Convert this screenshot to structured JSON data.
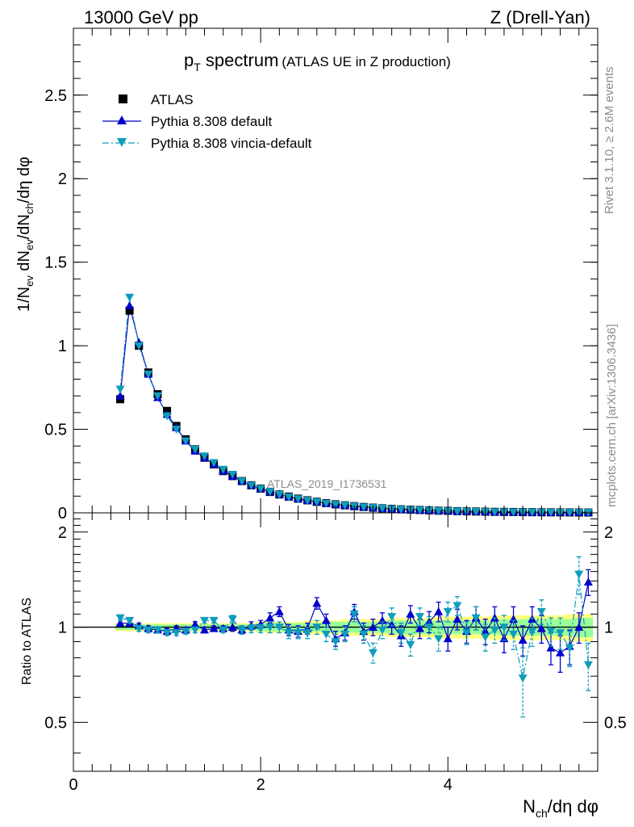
{
  "header": {
    "energy_label": "13000 GeV pp",
    "process_label": "Z (Drell-Yan)"
  },
  "title": {
    "main": "p",
    "main_sub": "T",
    "main_rest": " spectrum",
    "detail": "(ATLAS UE in Z production)"
  },
  "side_labels": {
    "rivet": "Rivet 3.1.10, ≥ 2.6M events",
    "mcplots": "mcplots.cern.ch [arXiv:1306.3436]"
  },
  "watermark": "ATLAS_2019_I1736531",
  "colors": {
    "atlas": "#000000",
    "default": "#0000cc",
    "vincia": "#0f9cbc",
    "band_inner": "#99ff99",
    "band_outer": "#ffff80"
  },
  "chart_data": [
    {
      "type": "scatter",
      "panel": "main",
      "ylabel": "1/N_ev dN_ev/dN_ch/dη dφ",
      "xlim": [
        0,
        5.6
      ],
      "ylim": [
        0,
        2.9
      ],
      "yticks": [
        "0",
        "0.5",
        "1",
        "1.5",
        "2",
        "2.5"
      ],
      "legend_position": "top-left",
      "x": [
        0.5,
        0.6,
        0.7,
        0.8,
        0.9,
        1.0,
        1.1,
        1.2,
        1.3,
        1.4,
        1.5,
        1.6,
        1.7,
        1.8,
        1.9,
        2.0,
        2.1,
        2.2,
        2.3,
        2.4,
        2.5,
        2.6,
        2.7,
        2.8,
        2.9,
        3.0,
        3.1,
        3.2,
        3.3,
        3.4,
        3.5,
        3.6,
        3.7,
        3.8,
        3.9,
        4.0,
        4.1,
        4.2,
        4.3,
        4.4,
        4.5,
        4.6,
        4.7,
        4.8,
        4.9,
        5.0,
        5.1,
        5.2,
        5.3,
        5.4,
        5.5
      ],
      "series": [
        {
          "name": "ATLAS",
          "marker": "square",
          "values": [
            0.68,
            1.21,
            1.0,
            0.84,
            0.71,
            0.61,
            0.52,
            0.44,
            0.38,
            0.33,
            0.29,
            0.25,
            0.22,
            0.19,
            0.165,
            0.145,
            0.125,
            0.11,
            0.097,
            0.085,
            0.075,
            0.066,
            0.058,
            0.051,
            0.045,
            0.04,
            0.035,
            0.031,
            0.027,
            0.024,
            0.021,
            0.019,
            0.017,
            0.015,
            0.013,
            0.012,
            0.01,
            0.009,
            0.008,
            0.007,
            0.006,
            0.0055,
            0.005,
            0.0045,
            0.004,
            0.0035,
            0.003,
            0.0028,
            0.0025,
            0.0022,
            0.002
          ]
        },
        {
          "name": "Pythia 8.308 default",
          "marker": "triangle-up",
          "line": "solid",
          "values": [
            0.7,
            1.24,
            1.02,
            0.83,
            0.69,
            0.59,
            0.51,
            0.43,
            0.37,
            0.33,
            0.29,
            0.25,
            0.22,
            0.19,
            0.165,
            0.145,
            0.127,
            0.112,
            0.097,
            0.084,
            0.075,
            0.067,
            0.057,
            0.05,
            0.045,
            0.04,
            0.035,
            0.031,
            0.027,
            0.024,
            0.021,
            0.019,
            0.017,
            0.015,
            0.013,
            0.012,
            0.01,
            0.009,
            0.008,
            0.007,
            0.006,
            0.0055,
            0.005,
            0.0045,
            0.004,
            0.0035,
            0.003,
            0.0028,
            0.0025,
            0.0022,
            0.002
          ]
        },
        {
          "name": "Pythia 8.308 vincia-default",
          "marker": "triangle-down",
          "line": "dashdot",
          "values": [
            0.74,
            1.29,
            1.0,
            0.83,
            0.7,
            0.58,
            0.5,
            0.43,
            0.38,
            0.34,
            0.3,
            0.26,
            0.23,
            0.19,
            0.165,
            0.145,
            0.127,
            0.11,
            0.095,
            0.084,
            0.074,
            0.065,
            0.057,
            0.05,
            0.045,
            0.04,
            0.035,
            0.031,
            0.027,
            0.024,
            0.021,
            0.019,
            0.017,
            0.015,
            0.013,
            0.012,
            0.01,
            0.009,
            0.008,
            0.007,
            0.006,
            0.0055,
            0.005,
            0.0045,
            0.004,
            0.0035,
            0.003,
            0.0028,
            0.0025,
            0.0022,
            0.002
          ]
        }
      ]
    },
    {
      "type": "scatter",
      "panel": "ratio",
      "ylabel": "Ratio to ATLAS",
      "xlabel": "N_ch/dη dφ",
      "xlim": [
        0,
        5.6
      ],
      "ylim": [
        0.35,
        2.3
      ],
      "yticks": [
        "0.5",
        "1",
        "2"
      ],
      "xticks": [
        "0",
        "2",
        "4"
      ],
      "reference_line": 1,
      "x": [
        0.5,
        0.6,
        0.7,
        0.8,
        0.9,
        1.0,
        1.1,
        1.2,
        1.3,
        1.4,
        1.5,
        1.6,
        1.7,
        1.8,
        1.9,
        2.0,
        2.1,
        2.2,
        2.3,
        2.4,
        2.5,
        2.6,
        2.7,
        2.8,
        2.9,
        3.0,
        3.1,
        3.2,
        3.3,
        3.4,
        3.5,
        3.6,
        3.7,
        3.8,
        3.9,
        4.0,
        4.1,
        4.2,
        4.3,
        4.4,
        4.5,
        4.6,
        4.7,
        4.8,
        4.9,
        5.0,
        5.1,
        5.2,
        5.3,
        5.4,
        5.5
      ],
      "series": [
        {
          "name": "Pythia 8.308 default",
          "values": [
            1.03,
            1.03,
            1.01,
            0.99,
            0.98,
            0.97,
            0.99,
            0.98,
            1.02,
            0.98,
            0.99,
            0.99,
            1.0,
            0.98,
            1.01,
            1.02,
            1.07,
            1.12,
            0.98,
            0.97,
            0.99,
            1.19,
            1.05,
            0.92,
            0.96,
            1.12,
            0.97,
            1.0,
            1.05,
            1.02,
            0.94,
            1.1,
            0.99,
            1.04,
            1.12,
            0.92,
            1.06,
            0.97,
            1.07,
            0.97,
            1.07,
            0.92,
            1.06,
            0.91,
            1.06,
            0.99,
            0.86,
            0.83,
            0.87,
            1.0,
            1.39
          ],
          "errors": [
            0.02,
            0.02,
            0.02,
            0.02,
            0.02,
            0.02,
            0.02,
            0.02,
            0.02,
            0.02,
            0.02,
            0.02,
            0.03,
            0.03,
            0.03,
            0.03,
            0.04,
            0.04,
            0.04,
            0.04,
            0.04,
            0.05,
            0.05,
            0.05,
            0.05,
            0.06,
            0.06,
            0.06,
            0.06,
            0.07,
            0.07,
            0.07,
            0.07,
            0.08,
            0.08,
            0.08,
            0.08,
            0.08,
            0.09,
            0.09,
            0.09,
            0.09,
            0.1,
            0.1,
            0.1,
            0.1,
            0.1,
            0.11,
            0.11,
            0.11,
            0.13
          ]
        },
        {
          "name": "Pythia 8.308 vincia-default",
          "values": [
            1.07,
            1.05,
            0.99,
            0.98,
            0.98,
            0.96,
            0.96,
            0.97,
            0.98,
            1.05,
            1.05,
            0.98,
            1.06,
            0.98,
            0.99,
            0.99,
            1.0,
            1.0,
            0.96,
            0.96,
            0.96,
            1.0,
            0.95,
            0.9,
            0.95,
            1.1,
            0.95,
            0.83,
            0.98,
            1.08,
            0.96,
            0.88,
            1.08,
            1.0,
            0.92,
            1.12,
            1.17,
            0.96,
            1.07,
            0.93,
            0.98,
            1.0,
            0.95,
            0.69,
            0.97,
            1.12,
            0.97,
            0.96,
            0.86,
            1.47,
            0.76
          ],
          "errors": [
            0.02,
            0.02,
            0.02,
            0.02,
            0.02,
            0.02,
            0.02,
            0.02,
            0.02,
            0.02,
            0.02,
            0.02,
            0.03,
            0.03,
            0.03,
            0.03,
            0.04,
            0.04,
            0.04,
            0.04,
            0.04,
            0.05,
            0.05,
            0.05,
            0.05,
            0.06,
            0.06,
            0.06,
            0.06,
            0.07,
            0.07,
            0.07,
            0.07,
            0.08,
            0.08,
            0.08,
            0.08,
            0.08,
            0.09,
            0.09,
            0.09,
            0.09,
            0.1,
            0.17,
            0.1,
            0.1,
            0.1,
            0.11,
            0.11,
            0.2,
            0.13
          ]
        },
        {
          "name": "ATLAS uncertainty band",
          "inner": [
            0.02,
            0.02,
            0.02,
            0.02,
            0.02,
            0.02,
            0.02,
            0.02,
            0.02,
            0.02,
            0.02,
            0.02,
            0.02,
            0.02,
            0.02,
            0.03,
            0.03,
            0.03,
            0.03,
            0.03,
            0.03,
            0.03,
            0.04,
            0.04,
            0.04,
            0.04,
            0.04,
            0.04,
            0.04,
            0.05,
            0.05,
            0.05,
            0.05,
            0.05,
            0.05,
            0.05,
            0.05,
            0.05,
            0.05,
            0.05,
            0.05,
            0.06,
            0.06,
            0.06,
            0.06,
            0.06,
            0.06,
            0.06,
            0.06,
            0.07,
            0.07
          ],
          "outer": [
            0.03,
            0.03,
            0.03,
            0.03,
            0.03,
            0.03,
            0.03,
            0.03,
            0.03,
            0.03,
            0.03,
            0.03,
            0.03,
            0.03,
            0.03,
            0.04,
            0.04,
            0.04,
            0.04,
            0.04,
            0.05,
            0.05,
            0.05,
            0.05,
            0.06,
            0.06,
            0.06,
            0.06,
            0.06,
            0.07,
            0.07,
            0.07,
            0.07,
            0.07,
            0.08,
            0.08,
            0.08,
            0.08,
            0.08,
            0.08,
            0.09,
            0.09,
            0.09,
            0.09,
            0.09,
            0.09,
            0.09,
            0.09,
            0.1,
            0.1,
            0.1
          ]
        }
      ]
    }
  ]
}
